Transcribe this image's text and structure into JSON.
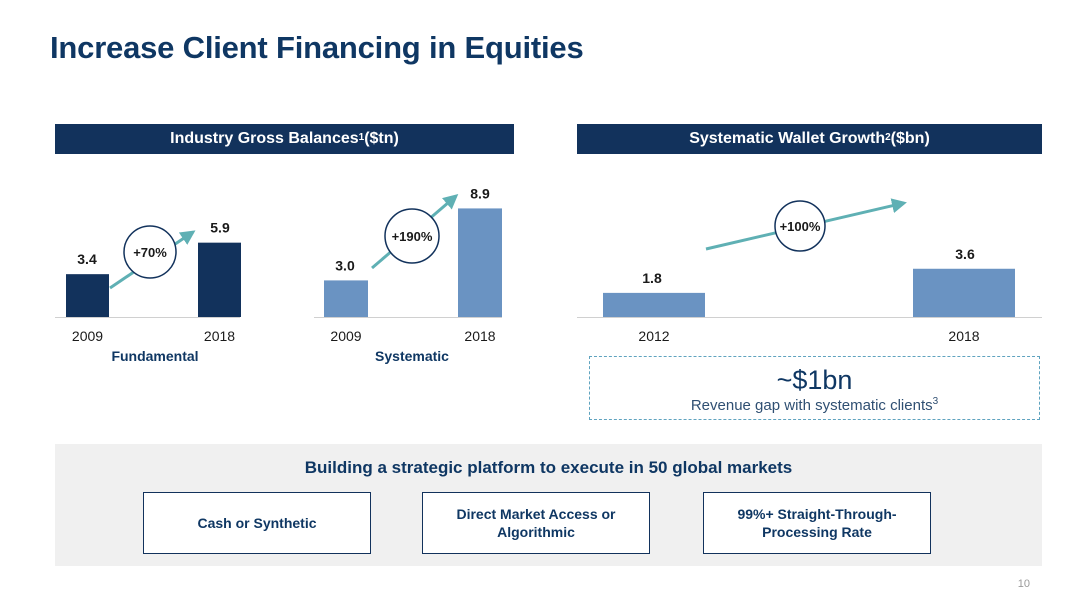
{
  "page": {
    "title": "Increase Client Financing in Equities",
    "page_number": "10"
  },
  "left_panel": {
    "header": "Industry Gross Balances",
    "header_sup": "1",
    "header_unit": " ($tn)"
  },
  "right_panel": {
    "header": "Systematic Wallet Growth",
    "header_sup": "2",
    "header_unit": " ($bn)"
  },
  "revenue_gap": {
    "value": "~$1bn",
    "caption": "Revenue gap with systematic clients",
    "caption_sup": "3"
  },
  "platform": {
    "title": "Building a strategic platform to execute in 50 global markets",
    "items": [
      "Cash or Synthetic",
      "Direct Market Access or Algorithmic",
      "99%+ Straight-Through-Processing Rate"
    ]
  },
  "colors": {
    "dark_navy": "#12325c",
    "steel_blue": "#6a93c2",
    "teal_arrow": "#5fb0b4",
    "title_blue": "#0f3763"
  },
  "chart_data": [
    {
      "type": "bar",
      "group_label": "Fundamental",
      "categories": [
        "2009",
        "2018"
      ],
      "values": [
        3.4,
        5.9
      ],
      "value_labels": [
        "3.4",
        "5.9"
      ],
      "growth_label": "+70%",
      "color": "#12325c"
    },
    {
      "type": "bar",
      "group_label": "Systematic",
      "categories": [
        "2009",
        "2018"
      ],
      "values": [
        3.0,
        8.9
      ],
      "value_labels": [
        "3.0",
        "8.9"
      ],
      "growth_label": "+190%",
      "color": "#6a93c2"
    },
    {
      "type": "bar",
      "categories": [
        "2012",
        "2018"
      ],
      "values": [
        1.8,
        3.6
      ],
      "value_labels": [
        "1.8",
        "3.6"
      ],
      "growth_label": "+100%",
      "color": "#6a93c2"
    }
  ]
}
